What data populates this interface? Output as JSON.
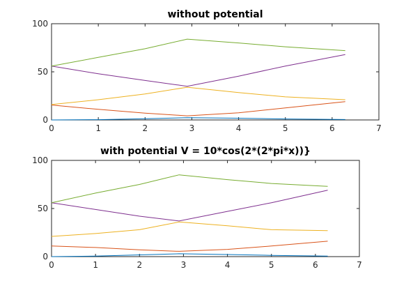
{
  "chart_data": [
    {
      "type": "line",
      "title": "without potential",
      "xlabel": "",
      "ylabel": "",
      "xlim": [
        0,
        7
      ],
      "ylim": [
        0,
        100
      ],
      "xticks": [
        "0",
        "1",
        "2",
        "3",
        "4",
        "5",
        "6",
        "7"
      ],
      "yticks": [
        "0",
        "50",
        "100"
      ],
      "grid": false,
      "x": [
        0,
        1,
        2,
        2.9,
        4,
        5,
        6.28
      ],
      "series": [
        {
          "color": "#0072BD",
          "values": [
            0,
            0.3,
            1.2,
            2.4,
            1.8,
            1.0,
            0.4
          ]
        },
        {
          "color": "#D95319",
          "values": [
            15.5,
            11,
            7,
            4.3,
            7.5,
            12.5,
            19
          ]
        },
        {
          "color": "#EDB120",
          "values": [
            16,
            21,
            27,
            34,
            28.5,
            24,
            21
          ]
        },
        {
          "color": "#7E2F8E",
          "values": [
            56,
            48,
            41,
            35,
            45.5,
            56,
            68
          ]
        },
        {
          "color": "#77AC30",
          "values": [
            56,
            65,
            74,
            84,
            80,
            76,
            72
          ]
        }
      ]
    },
    {
      "type": "line",
      "title": "with potential V = 10*cos(2*(2*pi*x))}",
      "xlabel": "",
      "ylabel": "",
      "xlim": [
        0,
        7
      ],
      "ylim": [
        0,
        100
      ],
      "xticks": [
        "0",
        "1",
        "2",
        "3",
        "4",
        "5",
        "6",
        "7"
      ],
      "yticks": [
        "0",
        "50",
        "100"
      ],
      "grid": false,
      "x": [
        0,
        1,
        2,
        2.9,
        4,
        5,
        6.28
      ],
      "series": [
        {
          "color": "#0072BD",
          "values": [
            0,
            0.5,
            1.8,
            3.0,
            2.2,
            1.3,
            0.6
          ]
        },
        {
          "color": "#D95319",
          "values": [
            11,
            9.5,
            7,
            5.5,
            7.5,
            11,
            16
          ]
        },
        {
          "color": "#EDB120",
          "values": [
            21,
            24,
            28,
            36,
            32,
            28,
            27
          ]
        },
        {
          "color": "#7E2F8E",
          "values": [
            56,
            49,
            42,
            37,
            47,
            56,
            69
          ]
        },
        {
          "color": "#77AC30",
          "values": [
            56,
            66,
            75,
            85,
            80,
            76,
            73
          ]
        }
      ]
    }
  ]
}
